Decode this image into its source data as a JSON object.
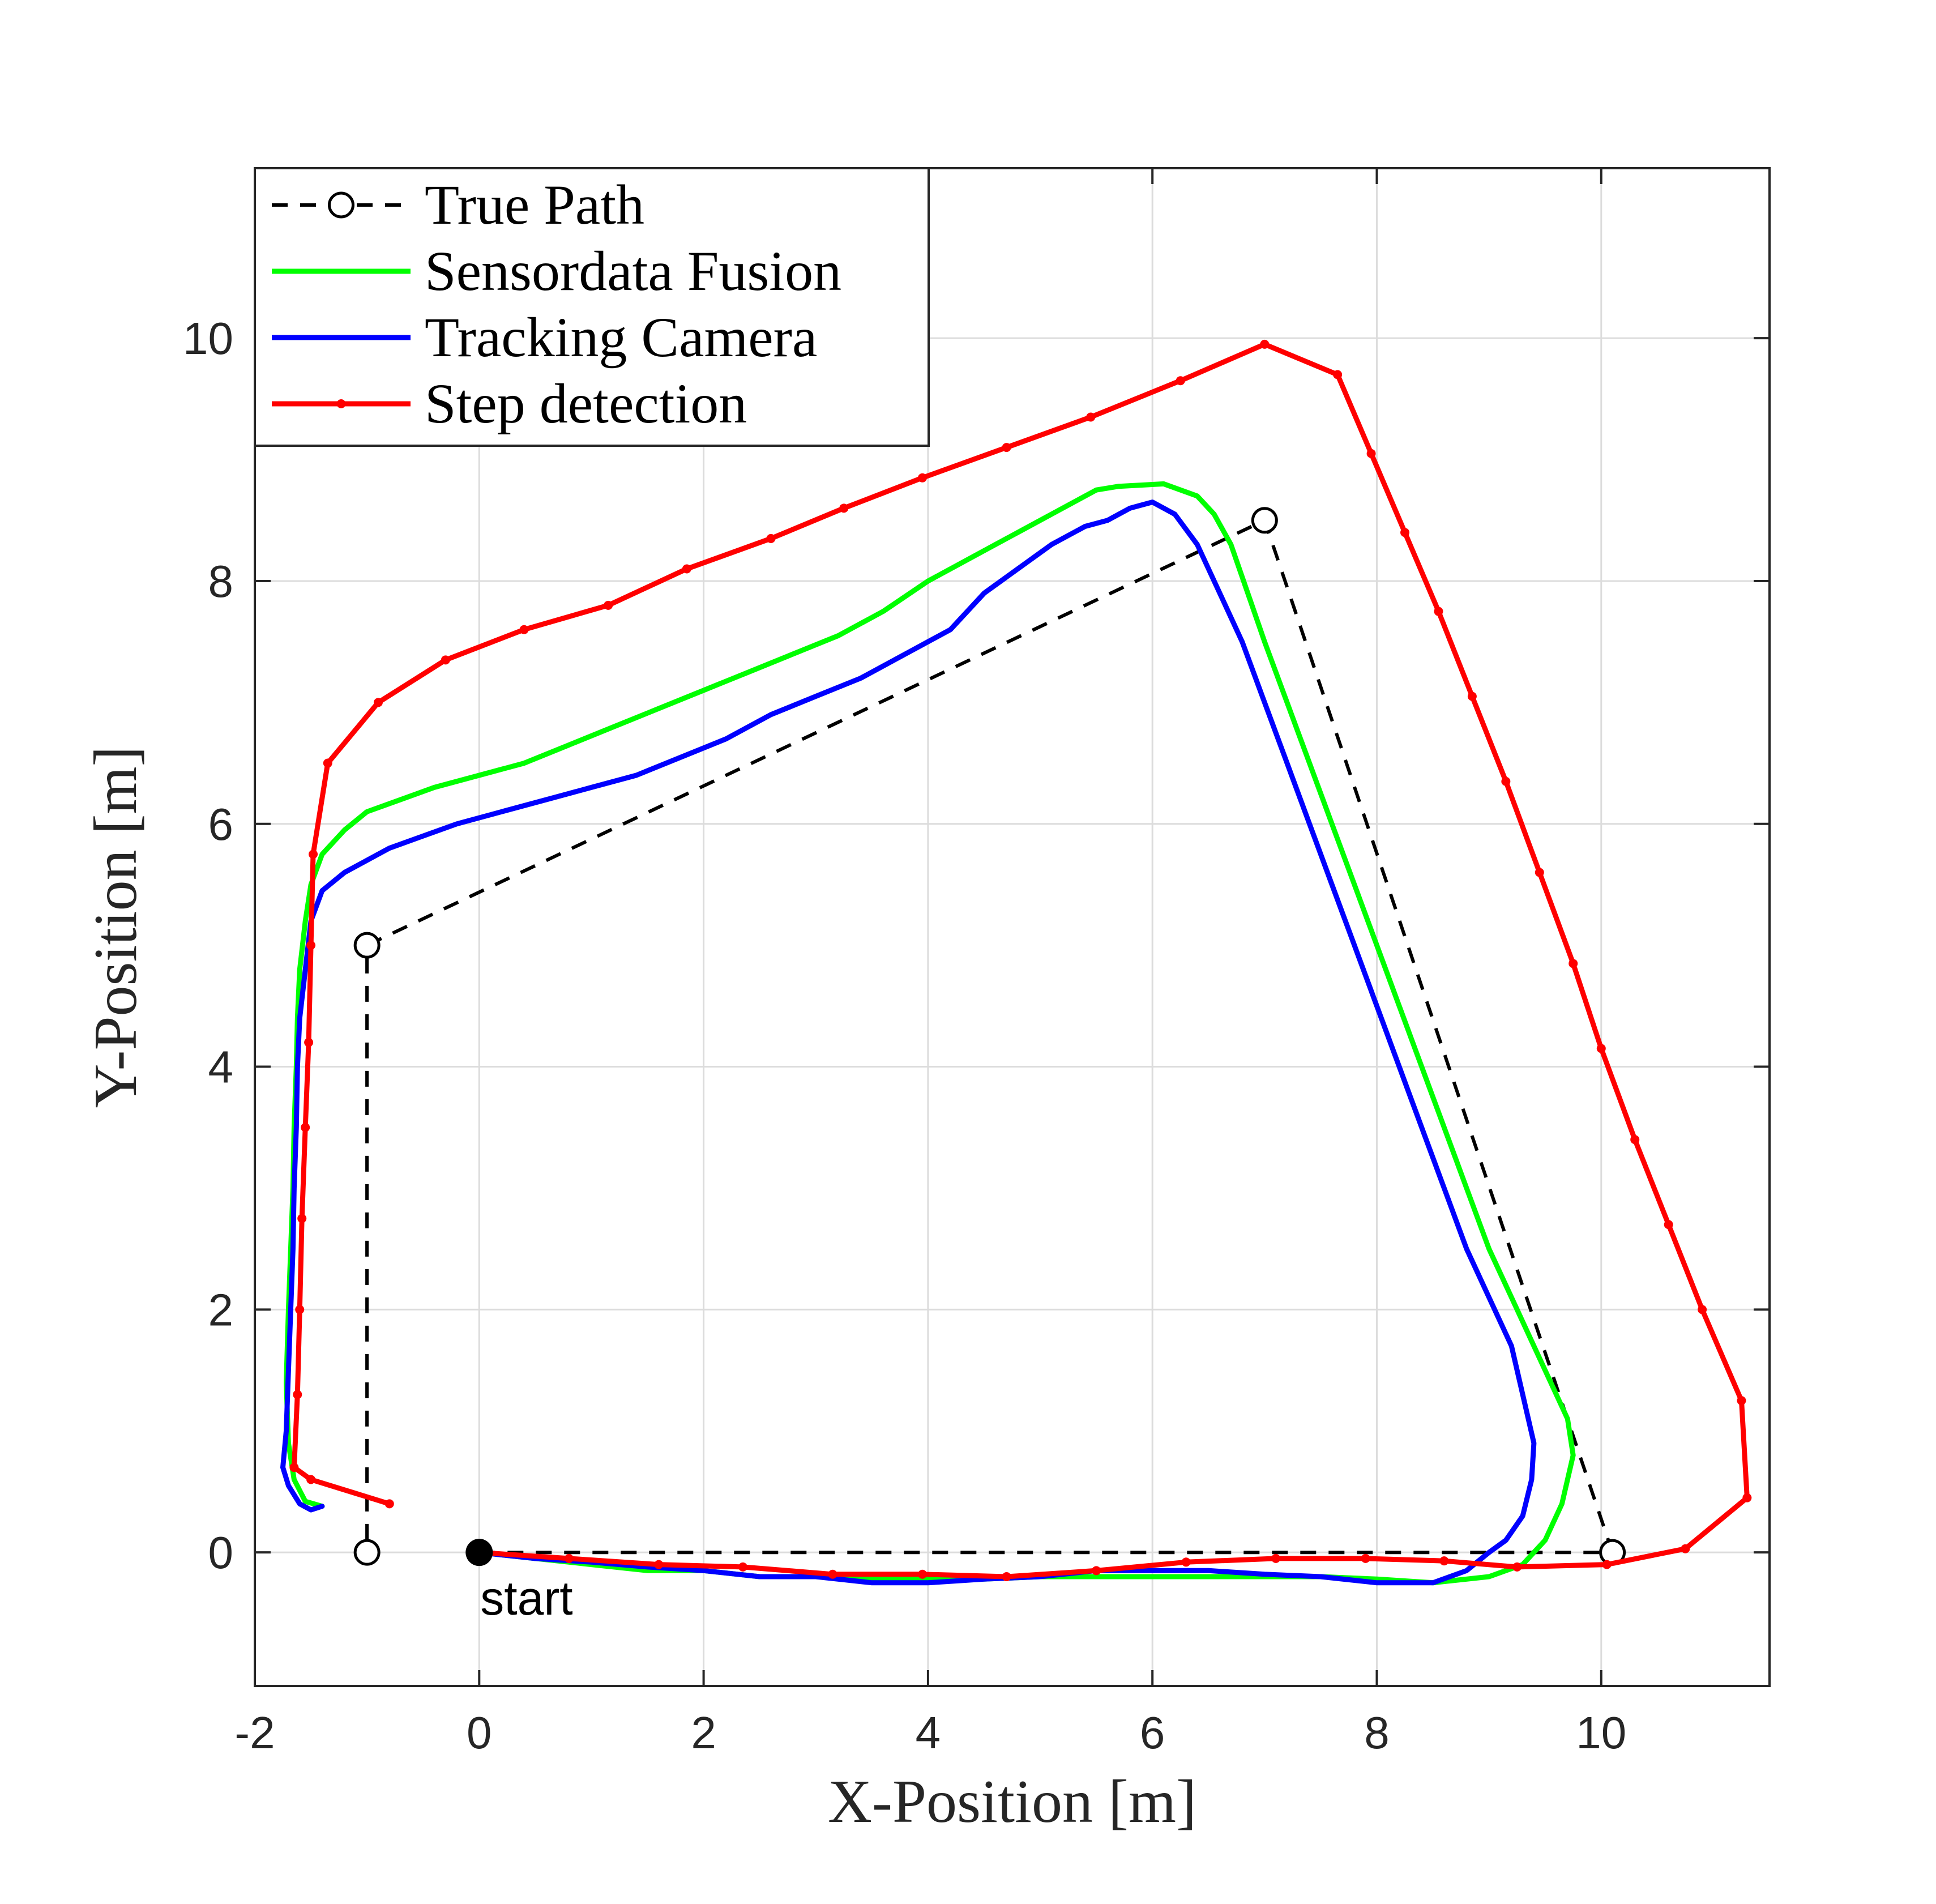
{
  "chart_data": {
    "type": "line",
    "xlabel": "X-Position [m]",
    "ylabel": "Y-Position [m]",
    "xlim": [
      -2,
      11.5
    ],
    "ylim": [
      -1.1,
      11.4
    ],
    "xticks": [
      -2,
      0,
      2,
      4,
      6,
      8,
      10
    ],
    "xtick_labels": [
      "-2",
      "0",
      "2",
      "4",
      "6",
      "8",
      "10"
    ],
    "yticks": [
      0,
      2,
      4,
      6,
      8,
      10
    ],
    "ytick_labels": [
      "0",
      "2",
      "4",
      "6",
      "8",
      "10"
    ],
    "grid": true,
    "legend_position": "top-left",
    "annotation": {
      "text": "start",
      "x": 0,
      "y": 0
    },
    "series": [
      {
        "name": "True Path",
        "color": "#000000",
        "style": "dashed",
        "marker": "open-circle",
        "x": [
          0,
          10.1,
          7.0,
          -1.0,
          -1.0
        ],
        "y": [
          0,
          0,
          8.5,
          5.0,
          0
        ]
      },
      {
        "name": "Sensordata Fusion",
        "color": "#00ff00",
        "style": "solid",
        "marker": "none",
        "x": [
          0,
          0.5,
          1.0,
          1.5,
          2.0,
          2.5,
          3.0,
          3.5,
          4.0,
          4.5,
          5.0,
          5.5,
          6.0,
          6.5,
          7.0,
          7.5,
          8.0,
          8.5,
          9.0,
          9.3,
          9.5,
          9.65,
          9.75,
          9.7,
          9.55,
          9.4,
          9.2,
          9.0,
          8.8,
          8.6,
          8.4,
          8.2,
          8.0,
          7.8,
          7.6,
          7.4,
          7.2,
          7.0,
          6.85,
          6.7,
          6.55,
          6.4,
          6.1,
          5.7,
          5.5,
          5.2,
          4.9,
          4.6,
          4.3,
          4.0,
          3.6,
          3.2,
          2.8,
          2.4,
          2.0,
          1.6,
          1.2,
          0.8,
          0.4,
          0.0,
          -0.4,
          -0.7,
          -1.0,
          -1.2,
          -1.4,
          -1.5,
          -1.55,
          -1.6,
          -1.62,
          -1.63,
          -1.65,
          -1.66,
          -1.68,
          -1.7,
          -1.72,
          -1.7,
          -1.65,
          -1.55,
          -1.4
        ],
        "y": [
          0,
          -0.05,
          -0.1,
          -0.15,
          -0.15,
          -0.2,
          -0.2,
          -0.22,
          -0.22,
          -0.22,
          -0.2,
          -0.2,
          -0.2,
          -0.2,
          -0.2,
          -0.2,
          -0.22,
          -0.25,
          -0.2,
          -0.1,
          0.1,
          0.4,
          0.8,
          1.1,
          1.4,
          1.7,
          2.1,
          2.5,
          3.0,
          3.5,
          4.0,
          4.5,
          5.0,
          5.5,
          6.0,
          6.5,
          7.0,
          7.5,
          7.9,
          8.3,
          8.55,
          8.7,
          8.8,
          8.78,
          8.75,
          8.6,
          8.45,
          8.3,
          8.15,
          8.0,
          7.75,
          7.55,
          7.4,
          7.25,
          7.1,
          6.95,
          6.8,
          6.65,
          6.5,
          6.4,
          6.3,
          6.2,
          6.1,
          5.95,
          5.75,
          5.5,
          5.2,
          4.8,
          4.4,
          4.0,
          3.5,
          3.0,
          2.5,
          2.0,
          1.4,
          0.9,
          0.6,
          0.42,
          0.38
        ]
      },
      {
        "name": "Tracking Camera",
        "color": "#0000ff",
        "style": "solid",
        "marker": "none",
        "x": [
          0,
          0.5,
          1.0,
          1.5,
          2.0,
          2.5,
          3.0,
          3.5,
          4.0,
          4.5,
          5.0,
          5.5,
          6.0,
          6.5,
          7.0,
          7.5,
          8.0,
          8.5,
          8.8,
          9.0,
          9.15,
          9.3,
          9.38,
          9.4,
          9.3,
          9.2,
          9.0,
          8.8,
          8.6,
          8.4,
          8.2,
          8.0,
          7.8,
          7.6,
          7.4,
          7.2,
          7.0,
          6.8,
          6.6,
          6.4,
          6.2,
          6.0,
          5.8,
          5.6,
          5.4,
          5.1,
          4.8,
          4.5,
          4.2,
          3.8,
          3.4,
          3.0,
          2.6,
          2.2,
          1.8,
          1.4,
          1.0,
          0.6,
          0.2,
          -0.2,
          -0.5,
          -0.8,
          -1.0,
          -1.2,
          -1.4,
          -1.5,
          -1.55,
          -1.6,
          -1.62,
          -1.63,
          -1.65,
          -1.66,
          -1.68,
          -1.7,
          -1.72,
          -1.75,
          -1.7,
          -1.6,
          -1.5,
          -1.4
        ],
        "y": [
          0,
          -0.05,
          -0.08,
          -0.12,
          -0.15,
          -0.2,
          -0.2,
          -0.25,
          -0.25,
          -0.22,
          -0.2,
          -0.15,
          -0.15,
          -0.15,
          -0.18,
          -0.2,
          -0.25,
          -0.25,
          -0.15,
          0.0,
          0.1,
          0.3,
          0.6,
          0.9,
          1.3,
          1.7,
          2.1,
          2.5,
          3.0,
          3.5,
          4.0,
          4.5,
          5.0,
          5.5,
          6.0,
          6.5,
          7.0,
          7.5,
          7.9,
          8.3,
          8.55,
          8.65,
          8.6,
          8.5,
          8.45,
          8.3,
          8.1,
          7.9,
          7.6,
          7.4,
          7.2,
          7.05,
          6.9,
          6.7,
          6.55,
          6.4,
          6.3,
          6.2,
          6.1,
          6.0,
          5.9,
          5.8,
          5.7,
          5.6,
          5.45,
          5.2,
          4.8,
          4.4,
          4.0,
          3.5,
          3.0,
          2.5,
          2.0,
          1.5,
          1.0,
          0.7,
          0.55,
          0.4,
          0.35,
          0.38
        ]
      },
      {
        "name": "Step detection",
        "color": "#ff0000",
        "style": "solid",
        "marker": "dot",
        "x": [
          0,
          0.8,
          1.6,
          2.35,
          3.15,
          3.95,
          4.7,
          5.5,
          6.3,
          7.1,
          7.9,
          8.6,
          9.25,
          10.05,
          10.75,
          11.3,
          11.25,
          10.9,
          10.6,
          10.3,
          10.0,
          9.75,
          9.45,
          9.15,
          8.85,
          8.55,
          8.25,
          7.95,
          7.65,
          7.0,
          6.25,
          5.45,
          4.7,
          3.95,
          3.25,
          2.6,
          1.85,
          1.15,
          0.4,
          -0.3,
          -0.9,
          -1.35,
          -1.48,
          -1.5,
          -1.52,
          -1.55,
          -1.58,
          -1.6,
          -1.62,
          -1.65,
          -1.5,
          -0.8
        ],
        "y": [
          0,
          -0.05,
          -0.1,
          -0.12,
          -0.18,
          -0.18,
          -0.2,
          -0.15,
          -0.08,
          -0.05,
          -0.05,
          -0.07,
          -0.12,
          -0.1,
          0.03,
          0.45,
          1.25,
          2.0,
          2.7,
          3.4,
          4.15,
          4.85,
          5.6,
          6.35,
          7.05,
          7.75,
          8.4,
          9.05,
          9.7,
          9.95,
          9.65,
          9.35,
          9.1,
          8.85,
          8.6,
          8.35,
          8.1,
          7.8,
          7.6,
          7.35,
          7.0,
          6.5,
          5.75,
          5.0,
          4.2,
          3.5,
          2.75,
          2.0,
          1.3,
          0.7,
          0.6,
          0.4
        ]
      }
    ]
  }
}
